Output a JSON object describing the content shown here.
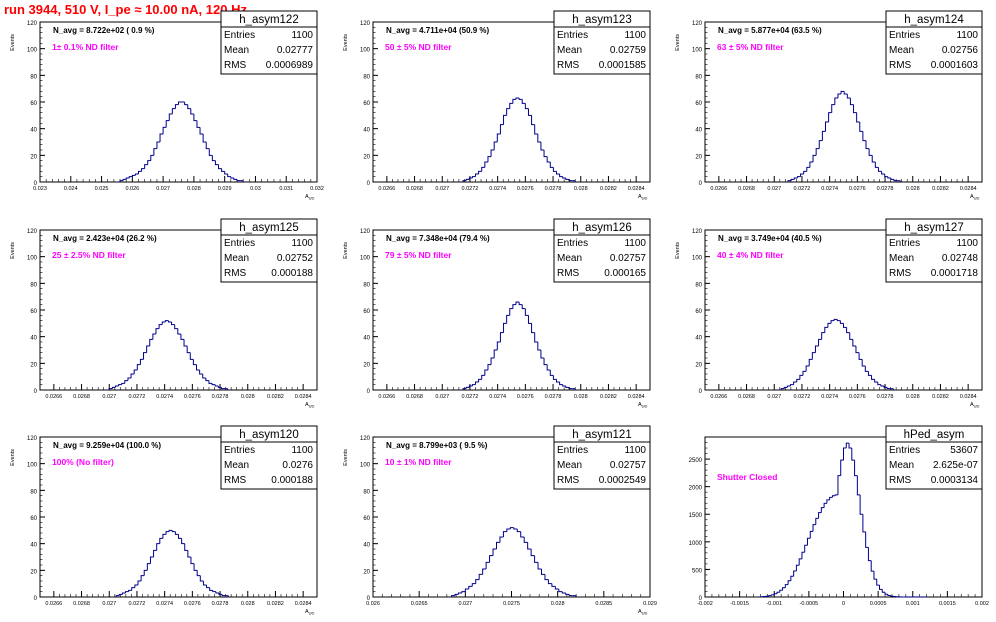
{
  "run_title": "run 3944,   510 V, I_pe ≈ 10.00 nA, 120 Hz",
  "stat_labels": {
    "entries": "Entries",
    "mean": "Mean",
    "rms": "RMS"
  },
  "colors": {
    "histogram": "#00008b",
    "annotation": "#ff00ff",
    "title": "#ff0000",
    "frame": "#000000"
  },
  "chart_data": [
    {
      "type": "bar",
      "name": "h_asym122",
      "ylabel": "Events",
      "xlabel": "A_UD",
      "entries": "1100",
      "mean": "0.02777",
      "rms": "0.0006989",
      "navg": "N_avg = 8.722e+02 ( 0.9 %)",
      "filter": "1± 0.1% ND filter",
      "xlim": [
        0.023,
        0.032
      ],
      "ylim": [
        0,
        120
      ],
      "yticks": [
        "0",
        "20",
        "40",
        "60",
        "80",
        "100",
        "120"
      ],
      "xticks": [
        {
          "v": 0.023,
          "l": "0.023"
        },
        {
          "v": 0.024,
          "l": "0.024"
        },
        {
          "v": 0.025,
          "l": "0.025"
        },
        {
          "v": 0.026,
          "l": "0.026"
        },
        {
          "v": 0.027,
          "l": "0.027"
        },
        {
          "v": 0.028,
          "l": "0.028"
        },
        {
          "v": 0.029,
          "l": "0.029"
        },
        {
          "v": 0.03,
          "l": "0.03"
        },
        {
          "v": 0.031,
          "l": "0.031"
        },
        {
          "v": 0.032,
          "l": "0.032"
        }
      ],
      "bins": {
        "start": 0.0256,
        "width": 0.0001,
        "counts": [
          1,
          2,
          3,
          4,
          5,
          6,
          8,
          10,
          13,
          16,
          20,
          25,
          30,
          36,
          41,
          46,
          51,
          55,
          58,
          60,
          60,
          58,
          55,
          51,
          46,
          41,
          36,
          30,
          25,
          20,
          16,
          13,
          10,
          8,
          6,
          4,
          3,
          2,
          1,
          1
        ]
      }
    },
    {
      "type": "bar",
      "name": "h_asym123",
      "ylabel": "Events",
      "xlabel": "A_UD",
      "entries": "1100",
      "mean": "0.02759",
      "rms": "0.0001585",
      "navg": "N_avg = 4.711e+04 (50.9 %)",
      "filter": "50 ± 5% ND filter",
      "xlim": [
        0.0265,
        0.0285
      ],
      "ylim": [
        0,
        120
      ],
      "yticks": [
        "0",
        "20",
        "40",
        "60",
        "80",
        "100",
        "120"
      ],
      "xticks": [
        {
          "v": 0.0266,
          "l": "0.0266"
        },
        {
          "v": 0.0268,
          "l": "0.0268"
        },
        {
          "v": 0.027,
          "l": "0.027"
        },
        {
          "v": 0.0272,
          "l": "0.0272"
        },
        {
          "v": 0.0274,
          "l": "0.0274"
        },
        {
          "v": 0.0276,
          "l": "0.0276"
        },
        {
          "v": 0.0278,
          "l": "0.0278"
        },
        {
          "v": 0.028,
          "l": "0.028"
        },
        {
          "v": 0.0282,
          "l": "0.0282"
        },
        {
          "v": 0.0284,
          "l": "0.0284"
        }
      ],
      "bins": {
        "start": 0.02715,
        "width": 2.25e-05,
        "counts": [
          1,
          2,
          3,
          4,
          6,
          8,
          11,
          15,
          19,
          24,
          30,
          36,
          43,
          50,
          55,
          59,
          62,
          63,
          62,
          59,
          55,
          50,
          43,
          36,
          30,
          24,
          19,
          15,
          11,
          8,
          6,
          4,
          3,
          2,
          1,
          1
        ]
      }
    },
    {
      "type": "bar",
      "name": "h_asym124",
      "ylabel": "Events",
      "xlabel": "A_UD",
      "entries": "1100",
      "mean": "0.02756",
      "rms": "0.0001603",
      "navg": "N_avg = 5.877e+04 (63.5 %)",
      "filter": "63 ± 5% ND filter",
      "xlim": [
        0.0265,
        0.0285
      ],
      "ylim": [
        0,
        120
      ],
      "yticks": [
        "0",
        "20",
        "40",
        "60",
        "80",
        "100",
        "120"
      ],
      "xticks": [
        {
          "v": 0.0266,
          "l": "0.0266"
        },
        {
          "v": 0.0268,
          "l": "0.0268"
        },
        {
          "v": 0.027,
          "l": "0.027"
        },
        {
          "v": 0.0272,
          "l": "0.0272"
        },
        {
          "v": 0.0274,
          "l": "0.0274"
        },
        {
          "v": 0.0276,
          "l": "0.0276"
        },
        {
          "v": 0.0278,
          "l": "0.0278"
        },
        {
          "v": 0.028,
          "l": "0.028"
        },
        {
          "v": 0.0282,
          "l": "0.0282"
        },
        {
          "v": 0.0284,
          "l": "0.0284"
        }
      ],
      "bins": {
        "start": 0.0271,
        "width": 2.25e-05,
        "counts": [
          1,
          2,
          3,
          4,
          6,
          8,
          11,
          15,
          20,
          25,
          31,
          38,
          45,
          52,
          58,
          63,
          66,
          68,
          66,
          63,
          58,
          52,
          45,
          38,
          31,
          25,
          20,
          15,
          11,
          8,
          6,
          4,
          3,
          2,
          1,
          1
        ]
      }
    },
    {
      "type": "bar",
      "name": "h_asym125",
      "ylabel": "Events",
      "xlabel": "A_UD",
      "entries": "1100",
      "mean": "0.02752",
      "rms": "0.000188",
      "navg": "N_avg = 2.423e+04 (26.2 %)",
      "filter": "25 ± 2.5% ND filter",
      "xlim": [
        0.0265,
        0.0285
      ],
      "ylim": [
        0,
        120
      ],
      "yticks": [
        "0",
        "20",
        "40",
        "60",
        "80",
        "100",
        "120"
      ],
      "xticks": [
        {
          "v": 0.0266,
          "l": "0.0266"
        },
        {
          "v": 0.0268,
          "l": "0.0268"
        },
        {
          "v": 0.027,
          "l": "0.027"
        },
        {
          "v": 0.0272,
          "l": "0.0272"
        },
        {
          "v": 0.0274,
          "l": "0.0274"
        },
        {
          "v": 0.0276,
          "l": "0.0276"
        },
        {
          "v": 0.0278,
          "l": "0.0278"
        },
        {
          "v": 0.028,
          "l": "0.028"
        },
        {
          "v": 0.0282,
          "l": "0.0282"
        },
        {
          "v": 0.0284,
          "l": "0.0284"
        }
      ],
      "bins": {
        "start": 0.027,
        "width": 2.25e-05,
        "counts": [
          1,
          2,
          3,
          4,
          5,
          7,
          9,
          12,
          15,
          19,
          23,
          28,
          33,
          38,
          42,
          46,
          49,
          51,
          52,
          51,
          49,
          46,
          42,
          38,
          33,
          28,
          23,
          19,
          15,
          12,
          9,
          7,
          5,
          4,
          3,
          2,
          1,
          1
        ]
      }
    },
    {
      "type": "bar",
      "name": "h_asym126",
      "ylabel": "Events",
      "xlabel": "A_UD",
      "entries": "1100",
      "mean": "0.02757",
      "rms": "0.000165",
      "navg": "N_avg = 7.348e+04 (79.4 %)",
      "filter": "79 ± 5% ND filter",
      "xlim": [
        0.0265,
        0.0285
      ],
      "ylim": [
        0,
        120
      ],
      "yticks": [
        "0",
        "20",
        "40",
        "60",
        "80",
        "100",
        "120"
      ],
      "xticks": [
        {
          "v": 0.0266,
          "l": "0.0266"
        },
        {
          "v": 0.0268,
          "l": "0.0268"
        },
        {
          "v": 0.027,
          "l": "0.027"
        },
        {
          "v": 0.0272,
          "l": "0.0272"
        },
        {
          "v": 0.0274,
          "l": "0.0274"
        },
        {
          "v": 0.0276,
          "l": "0.0276"
        },
        {
          "v": 0.0278,
          "l": "0.0278"
        },
        {
          "v": 0.028,
          "l": "0.028"
        },
        {
          "v": 0.0282,
          "l": "0.0282"
        },
        {
          "v": 0.0284,
          "l": "0.0284"
        }
      ],
      "bins": {
        "start": 0.02715,
        "width": 2.25e-05,
        "counts": [
          1,
          2,
          3,
          4,
          6,
          8,
          11,
          15,
          19,
          24,
          30,
          36,
          43,
          50,
          56,
          61,
          64,
          66,
          64,
          61,
          56,
          50,
          43,
          36,
          30,
          24,
          19,
          15,
          11,
          8,
          6,
          4,
          3,
          2,
          1,
          1
        ]
      }
    },
    {
      "type": "bar",
      "name": "h_asym127",
      "ylabel": "Events",
      "xlabel": "A_UD",
      "entries": "1100",
      "mean": "0.02748",
      "rms": "0.0001718",
      "navg": "N_avg = 3.749e+04 (40.5 %)",
      "filter": "40 ± 4% ND filter",
      "xlim": [
        0.0265,
        0.0285
      ],
      "ylim": [
        0,
        120
      ],
      "yticks": [
        "0",
        "20",
        "40",
        "60",
        "80",
        "100",
        "120"
      ],
      "xticks": [
        {
          "v": 0.0266,
          "l": "0.0266"
        },
        {
          "v": 0.0268,
          "l": "0.0268"
        },
        {
          "v": 0.027,
          "l": "0.027"
        },
        {
          "v": 0.0272,
          "l": "0.0272"
        },
        {
          "v": 0.0274,
          "l": "0.0274"
        },
        {
          "v": 0.0276,
          "l": "0.0276"
        },
        {
          "v": 0.0278,
          "l": "0.0278"
        },
        {
          "v": 0.028,
          "l": "0.028"
        },
        {
          "v": 0.0282,
          "l": "0.0282"
        },
        {
          "v": 0.0284,
          "l": "0.0284"
        }
      ],
      "bins": {
        "start": 0.02705,
        "width": 2.25e-05,
        "counts": [
          1,
          2,
          3,
          4,
          6,
          8,
          11,
          14,
          18,
          23,
          28,
          33,
          38,
          43,
          47,
          50,
          52,
          53,
          52,
          50,
          47,
          43,
          38,
          33,
          28,
          23,
          18,
          14,
          11,
          8,
          6,
          4,
          3,
          2,
          1,
          1
        ]
      }
    },
    {
      "type": "bar",
      "name": "h_asym120",
      "ylabel": "Events",
      "xlabel": "A_UD",
      "entries": "1100",
      "mean": "0.0276",
      "rms": "0.000188",
      "navg": "N_avg = 9.259e+04 (100.0 %)",
      "filter": "100% (No filter)",
      "xlim": [
        0.0265,
        0.0285
      ],
      "ylim": [
        0,
        120
      ],
      "yticks": [
        "0",
        "20",
        "40",
        "60",
        "80",
        "100",
        "120"
      ],
      "xticks": [
        {
          "v": 0.0266,
          "l": "0.0266"
        },
        {
          "v": 0.0268,
          "l": "0.0268"
        },
        {
          "v": 0.027,
          "l": "0.027"
        },
        {
          "v": 0.0272,
          "l": "0.0272"
        },
        {
          "v": 0.0274,
          "l": "0.0274"
        },
        {
          "v": 0.0276,
          "l": "0.0276"
        },
        {
          "v": 0.0278,
          "l": "0.0278"
        },
        {
          "v": 0.028,
          "l": "0.028"
        },
        {
          "v": 0.0282,
          "l": "0.0282"
        },
        {
          "v": 0.0284,
          "l": "0.0284"
        }
      ],
      "bins": {
        "start": 0.02705,
        "width": 2.25e-05,
        "counts": [
          1,
          2,
          3,
          4,
          5,
          7,
          9,
          12,
          16,
          20,
          25,
          30,
          35,
          40,
          44,
          47,
          49,
          50,
          49,
          47,
          44,
          40,
          35,
          30,
          25,
          20,
          16,
          12,
          9,
          7,
          5,
          4,
          3,
          2,
          1,
          1
        ]
      }
    },
    {
      "type": "bar",
      "name": "h_asym121",
      "ylabel": "Events",
      "xlabel": "A_UD",
      "entries": "1100",
      "mean": "0.02757",
      "rms": "0.0002549",
      "navg": "N_avg = 8.799e+03 ( 9.5 %)",
      "filter": "10 ± 1% ND filter",
      "xlim": [
        0.026,
        0.029
      ],
      "ylim": [
        0,
        120
      ],
      "yticks": [
        "0",
        "20",
        "40",
        "60",
        "80",
        "100",
        "120"
      ],
      "xticks": [
        {
          "v": 0.026,
          "l": "0.026"
        },
        {
          "v": 0.0265,
          "l": "0.0265"
        },
        {
          "v": 0.027,
          "l": "0.027"
        },
        {
          "v": 0.0275,
          "l": "0.0275"
        },
        {
          "v": 0.028,
          "l": "0.028"
        },
        {
          "v": 0.0285,
          "l": "0.0285"
        },
        {
          "v": 0.029,
          "l": "0.029"
        }
      ],
      "bins": {
        "start": 0.02685,
        "width": 3.75e-05,
        "counts": [
          1,
          2,
          3,
          4,
          6,
          8,
          10,
          13,
          17,
          21,
          26,
          31,
          36,
          41,
          45,
          49,
          51,
          52,
          51,
          49,
          45,
          41,
          36,
          31,
          26,
          21,
          17,
          13,
          10,
          8,
          6,
          4,
          3,
          2,
          1,
          1
        ]
      }
    },
    {
      "type": "bar",
      "name": "hPed_asym",
      "ylabel": "",
      "xlabel": "",
      "entries": "53607",
      "mean": "2.625e-07",
      "rms": "0.0003134",
      "navg": "",
      "filter": "Shutter Closed",
      "xlim": [
        -0.002,
        0.002
      ],
      "ylim": [
        0,
        2900
      ],
      "yticks": [
        "0",
        "500",
        "1000",
        "1500",
        "2000",
        "2500"
      ],
      "xticks": [
        {
          "v": -0.002,
          "l": "-0.002"
        },
        {
          "v": -0.0015,
          "l": "-0.0015"
        },
        {
          "v": -0.001,
          "l": "-0.001"
        },
        {
          "v": -0.0005,
          "l": "-0.0005"
        },
        {
          "v": 0,
          "l": "0"
        },
        {
          "v": 0.0005,
          "l": "0.0005"
        },
        {
          "v": 0.001,
          "l": "0.001"
        },
        {
          "v": 0.0015,
          "l": "0.0015"
        },
        {
          "v": 0.002,
          "l": "0.002"
        }
      ],
      "bins": {
        "start": -0.0012,
        "width": 4e-05,
        "counts": [
          4,
          8,
          14,
          24,
          38,
          58,
          86,
          122,
          168,
          225,
          295,
          377,
          471,
          576,
          690,
          811,
          937,
          1064,
          1190,
          1312,
          1426,
          1530,
          1621,
          1698,
          1760,
          1806,
          1836,
          1850,
          2200,
          2480,
          2700,
          2790,
          2700,
          2480,
          2200,
          1850,
          1500,
          1180,
          900,
          660,
          470,
          325,
          215,
          138,
          85,
          50,
          28,
          15,
          8,
          4,
          2,
          1,
          1,
          1,
          1,
          1,
          1,
          1,
          1,
          1
        ]
      }
    }
  ]
}
